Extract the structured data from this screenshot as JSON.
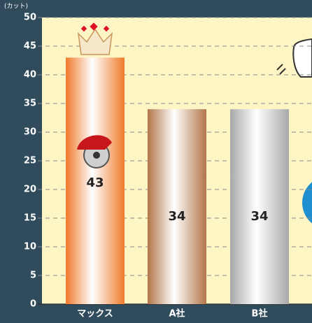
{
  "chart_data": {
    "type": "bar",
    "y_unit": "(カット)",
    "categories": [
      "マックス",
      "A社",
      "B社"
    ],
    "values": [
      43,
      34,
      34
    ],
    "colors": [
      "#f07a2a",
      "#b27548",
      "#a8a8a8"
    ],
    "ylim": [
      0,
      50
    ],
    "yticks": [
      0,
      5,
      10,
      15,
      20,
      25,
      30,
      35,
      40,
      45,
      50
    ],
    "grid": true
  }
}
